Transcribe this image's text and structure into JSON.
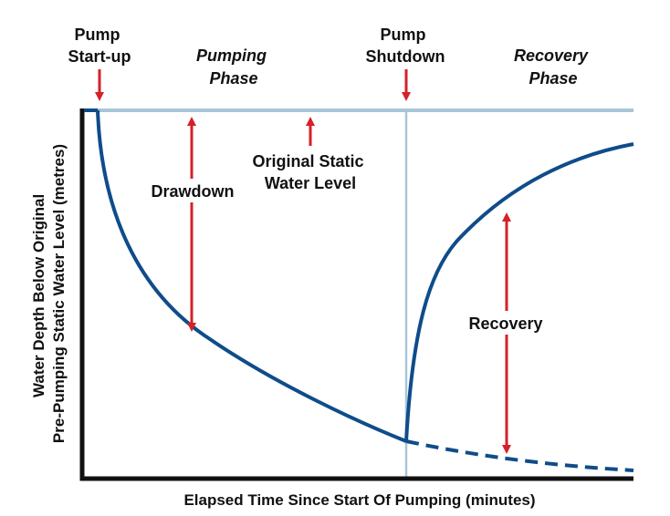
{
  "colors": {
    "curve": "#0f4c8a",
    "arrow": "#d6202a",
    "static_level": "#a9c6d8",
    "shutdown_line": "#a9c6d8",
    "axis": "#111111"
  },
  "labels": {
    "pump_startup": [
      "Pump",
      "Start-up"
    ],
    "pumping_phase": [
      "Pumping",
      "Phase"
    ],
    "pump_shutdown": [
      "Pump",
      "Shutdown"
    ],
    "recovery_phase": [
      "Recovery",
      "Phase"
    ],
    "original_static": [
      "Original Static",
      "Water Level"
    ],
    "drawdown": "Drawdown",
    "recovery": "Recovery"
  },
  "axes": {
    "y_label": [
      "Water Depth Below Original",
      "Pre-Pumping Static Water Level (metres)"
    ],
    "x_label": "Elapsed Time Since Start Of Pumping (minutes)"
  }
}
